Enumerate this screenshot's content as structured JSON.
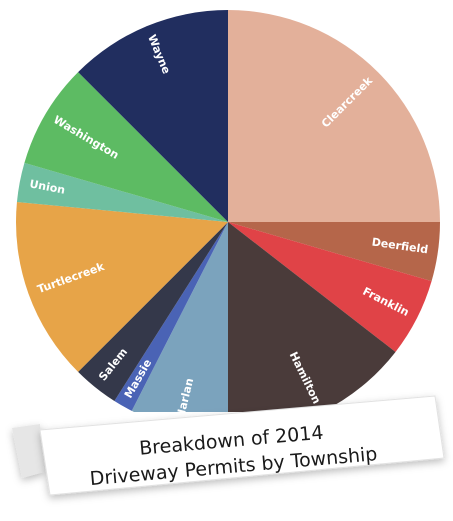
{
  "chart_data": {
    "type": "pie",
    "title_lines": [
      "Breakdown of 2014",
      "Driveway Permits by Township"
    ],
    "slices": [
      {
        "label": "Clearcreek",
        "value": 25.0,
        "color": "#e3b09a"
      },
      {
        "label": "Deerfield",
        "value": 4.5,
        "color": "#b5664a"
      },
      {
        "label": "Franklin",
        "value": 6.0,
        "color": "#e04347"
      },
      {
        "label": "Hamilton",
        "value": 14.5,
        "color": "#4a3b3a"
      },
      {
        "label": "Harlan",
        "value": 7.5,
        "color": "#7ba3bd"
      },
      {
        "label": "Massie",
        "value": 1.5,
        "color": "#4a63b5"
      },
      {
        "label": "Salem",
        "value": 3.5,
        "color": "#34384a"
      },
      {
        "label": "Turtlecreek",
        "value": 14.0,
        "color": "#e7a448"
      },
      {
        "label": "Union",
        "value": 3.0,
        "color": "#6fbfa0"
      },
      {
        "label": "Washington",
        "value": 8.0,
        "color": "#5dbb63"
      },
      {
        "label": "Wayne",
        "value": 12.5,
        "color": "#212e5f"
      }
    ]
  }
}
